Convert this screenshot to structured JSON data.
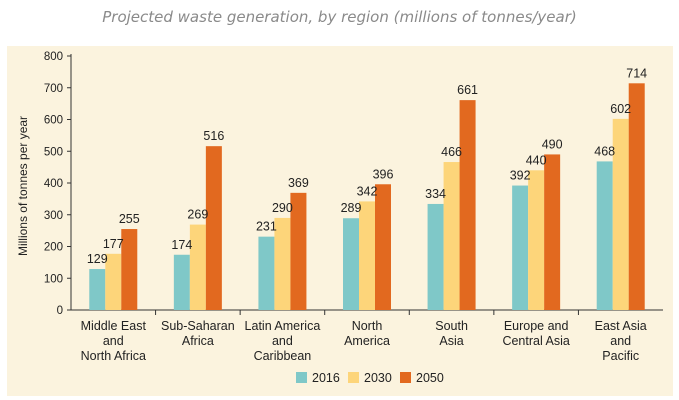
{
  "chart_data": {
    "type": "bar",
    "title": "Projected waste generation, by region (millions of tonnes/year)",
    "ylabel": "Millions of tonnes per year",
    "xlabel": "",
    "ylim": [
      0,
      800
    ],
    "yticks": [
      "0",
      "100",
      "200",
      "300",
      "400",
      "500",
      "600",
      "700",
      "800"
    ],
    "categories": [
      [
        "Middle East",
        "and",
        "North Africa"
      ],
      [
        "Sub-Saharan",
        "Africa"
      ],
      [
        "Latin America",
        "and",
        "Caribbean"
      ],
      [
        "North",
        "America"
      ],
      [
        "South",
        "Asia"
      ],
      [
        "Europe and",
        "Central Asia"
      ],
      [
        "East Asia",
        "and",
        "Pacific"
      ]
    ],
    "series": [
      {
        "name": "2016",
        "color": "#7fc8c8",
        "values": [
          129,
          174,
          231,
          289,
          334,
          392,
          468
        ]
      },
      {
        "name": "2030",
        "color": "#fdd57a",
        "values": [
          177,
          269,
          290,
          342,
          466,
          440,
          602
        ]
      },
      {
        "name": "2050",
        "color": "#e2691f",
        "values": [
          255,
          516,
          369,
          396,
          661,
          490,
          714
        ]
      }
    ],
    "legend_position": "bottom",
    "grid": false
  }
}
